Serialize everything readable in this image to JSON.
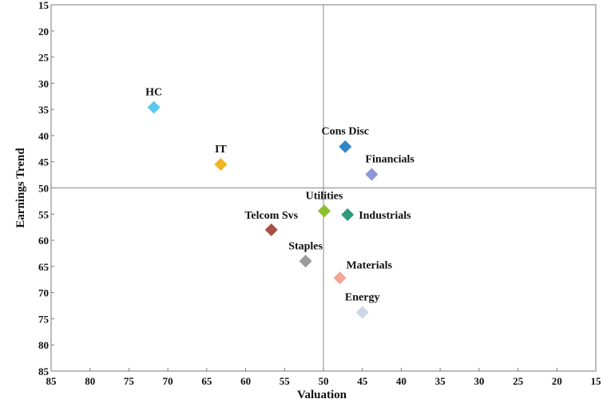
{
  "chart_data": {
    "type": "scatter",
    "title": "",
    "xlabel": "Valuation",
    "ylabel": "Earnings Trend",
    "xlim": [
      85,
      15
    ],
    "ylim": [
      15,
      85
    ],
    "x_reversed": true,
    "y_reversed": true,
    "x_ticks": [
      85,
      80,
      75,
      70,
      65,
      60,
      55,
      50,
      45,
      40,
      35,
      30,
      25,
      20,
      15
    ],
    "y_ticks": [
      15,
      20,
      25,
      30,
      35,
      40,
      45,
      50,
      55,
      60,
      65,
      70,
      75,
      80,
      85
    ],
    "reference_lines": {
      "x": 50,
      "y": 50
    },
    "grid": false,
    "marker": "diamond",
    "points": [
      {
        "label": "HC",
        "x": 71.8,
        "y": 34.6,
        "color": "#5bc8ee"
      },
      {
        "label": "IT",
        "x": 63.2,
        "y": 45.5,
        "color": "#f0b323"
      },
      {
        "label": "Cons Disc",
        "x": 47.2,
        "y": 42.1,
        "color": "#2e86c9"
      },
      {
        "label": "Financials",
        "x": 43.8,
        "y": 47.4,
        "color": "#8b97d9"
      },
      {
        "label": "Utilities",
        "x": 49.9,
        "y": 54.4,
        "color": "#8cbf2f"
      },
      {
        "label": "Industrials",
        "x": 46.9,
        "y": 55.1,
        "color": "#2e9b7b"
      },
      {
        "label": "Telcom Svs",
        "x": 56.7,
        "y": 58.0,
        "color": "#a94f45"
      },
      {
        "label": "Staples",
        "x": 52.3,
        "y": 64.0,
        "color": "#9b9b9b"
      },
      {
        "label": "Materials",
        "x": 47.9,
        "y": 67.2,
        "color": "#f2a793"
      },
      {
        "label": "Energy",
        "x": 45.0,
        "y": 73.8,
        "color": "#cdd7e6"
      }
    ]
  }
}
